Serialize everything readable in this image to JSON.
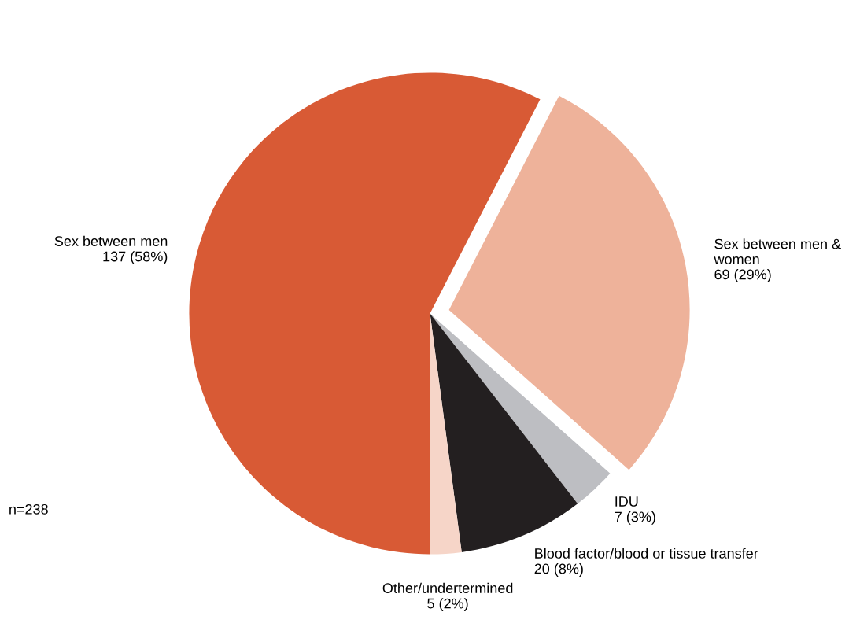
{
  "chart_data": {
    "type": "pie",
    "categories": [
      "Sex between men",
      "Sex between men & women",
      "IDU",
      "Blood factor/blood or tissue transfer",
      "Other/undertermined"
    ],
    "values": [
      137,
      69,
      7,
      20,
      5
    ],
    "value_labels": [
      "137 (58%)",
      "69 (29%)",
      "7 (3%)",
      "20 (8%)",
      "5 (2%)"
    ],
    "colors": [
      "#d85a35",
      "#eeb29a",
      "#bdbec2",
      "#231f20",
      "#f6d5c8"
    ],
    "annotations": [
      "n=238"
    ],
    "legend": false
  }
}
